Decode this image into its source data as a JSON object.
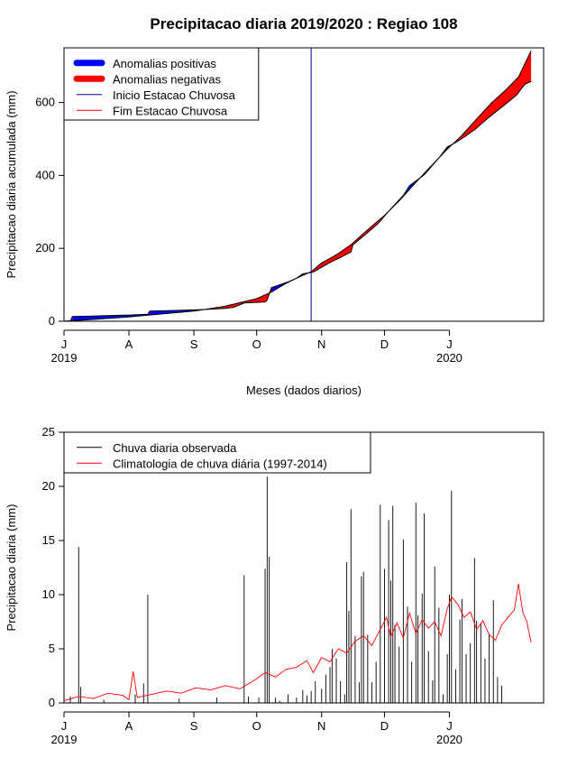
{
  "title": "Precipitacao diaria 2019/2020 : Regiao 108",
  "chart_data": [
    {
      "type": "area",
      "title": "Precipitacao diaria 2019/2020 : Regiao 108",
      "xlabel": "Meses (dados diarios)",
      "ylabel": "Precipitacao diaria acumulada (mm)",
      "x_range": [
        "2019-07-01",
        "2020-02-15"
      ],
      "ylim": [
        0,
        750
      ],
      "yticks": [
        "0",
        "200",
        "400",
        "600"
      ],
      "xticks": [
        {
          "date": "2019-07-01",
          "label": "J",
          "year": "2019"
        },
        {
          "date": "2019-08-01",
          "label": "A",
          "year": ""
        },
        {
          "date": "2019-09-01",
          "label": "S",
          "year": ""
        },
        {
          "date": "2019-10-01",
          "label": "O",
          "year": ""
        },
        {
          "date": "2019-11-01",
          "label": "N",
          "year": ""
        },
        {
          "date": "2019-12-01",
          "label": "D",
          "year": ""
        },
        {
          "date": "2020-01-01",
          "label": "J",
          "year": "2020"
        }
      ],
      "legend": {
        "position": "top-left",
        "entries": [
          {
            "label": "Anomalias positivas",
            "color": "#0000ff",
            "style": "thick"
          },
          {
            "label": "Anomalias negativas",
            "color": "#ff0000",
            "style": "thick"
          },
          {
            "label": "Inicio Estacao Chuvosa",
            "color": "#00008b",
            "style": "line"
          },
          {
            "label": "Fim Estacao Chuvosa",
            "color": "#ff0000",
            "style": "line"
          }
        ]
      },
      "rainy_season_start": "2019-10-27",
      "series": [
        {
          "name": "Observada",
          "points": [
            [
              "2019-07-01",
              0
            ],
            [
              "2019-07-04",
              1
            ],
            [
              "2019-07-05",
              13
            ],
            [
              "2019-07-15",
              14
            ],
            [
              "2019-07-25",
              16
            ],
            [
              "2019-08-01",
              17
            ],
            [
              "2019-08-05",
              18
            ],
            [
              "2019-08-10",
              19
            ],
            [
              "2019-08-11",
              28
            ],
            [
              "2019-08-20",
              29
            ],
            [
              "2019-08-31",
              31
            ],
            [
              "2019-09-05",
              32
            ],
            [
              "2019-09-15",
              35
            ],
            [
              "2019-09-20",
              38
            ],
            [
              "2019-09-25",
              50
            ],
            [
              "2019-10-05",
              53
            ],
            [
              "2019-10-06",
              58
            ],
            [
              "2019-10-08",
              92
            ],
            [
              "2019-10-12",
              100
            ],
            [
              "2019-10-16",
              108
            ],
            [
              "2019-10-20",
              118
            ],
            [
              "2019-10-23",
              130
            ],
            [
              "2019-10-28",
              135
            ],
            [
              "2019-11-01",
              148
            ],
            [
              "2019-11-06",
              164
            ],
            [
              "2019-11-10",
              175
            ],
            [
              "2019-11-15",
              190
            ],
            [
              "2019-11-16",
              210
            ],
            [
              "2019-11-22",
              238
            ],
            [
              "2019-11-28",
              268
            ],
            [
              "2019-12-04",
              308
            ],
            [
              "2019-12-10",
              345
            ],
            [
              "2019-12-13",
              372
            ],
            [
              "2019-12-20",
              402
            ],
            [
              "2019-12-27",
              448
            ],
            [
              "2019-12-31",
              478
            ],
            [
              "2020-01-04",
              490
            ],
            [
              "2020-01-08",
              505
            ],
            [
              "2020-01-13",
              525
            ],
            [
              "2020-01-20",
              560
            ],
            [
              "2020-01-27",
              592
            ],
            [
              "2020-02-02",
              620
            ],
            [
              "2020-02-06",
              650
            ],
            [
              "2020-02-09",
              658
            ]
          ]
        },
        {
          "name": "Climatologia",
          "points": [
            [
              "2019-07-01",
              0
            ],
            [
              "2019-07-15",
              5
            ],
            [
              "2019-08-01",
              12
            ],
            [
              "2019-08-15",
              19
            ],
            [
              "2019-09-01",
              28
            ],
            [
              "2019-09-15",
              40
            ],
            [
              "2019-10-01",
              62
            ],
            [
              "2019-10-08",
              80
            ],
            [
              "2019-10-15",
              104
            ],
            [
              "2019-10-20",
              118
            ],
            [
              "2019-10-27",
              136
            ],
            [
              "2019-11-01",
              160
            ],
            [
              "2019-11-08",
              182
            ],
            [
              "2019-11-15",
              210
            ],
            [
              "2019-11-22",
              246
            ],
            [
              "2019-12-01",
              290
            ],
            [
              "2019-12-08",
              330
            ],
            [
              "2019-12-15",
              375
            ],
            [
              "2019-12-22",
              418
            ],
            [
              "2019-12-31",
              472
            ],
            [
              "2020-01-07",
              510
            ],
            [
              "2020-01-14",
              555
            ],
            [
              "2020-01-21",
              598
            ],
            [
              "2020-01-28",
              635
            ],
            [
              "2020-02-03",
              670
            ],
            [
              "2020-02-09",
              742
            ]
          ]
        }
      ]
    },
    {
      "type": "bar",
      "xlabel": "Meses (dados diarios)",
      "ylabel": "Precipitacao diaria (mm)",
      "x_range": [
        "2019-07-01",
        "2020-02-15"
      ],
      "ylim": [
        0,
        25
      ],
      "yticks": [
        "0",
        "5",
        "10",
        "15",
        "20",
        "25"
      ],
      "xticks": [
        {
          "date": "2019-07-01",
          "label": "J",
          "year": "2019"
        },
        {
          "date": "2019-08-01",
          "label": "A",
          "year": ""
        },
        {
          "date": "2019-09-01",
          "label": "S",
          "year": ""
        },
        {
          "date": "2019-10-01",
          "label": "O",
          "year": ""
        },
        {
          "date": "2019-11-01",
          "label": "N",
          "year": ""
        },
        {
          "date": "2019-12-01",
          "label": "D",
          "year": ""
        },
        {
          "date": "2020-01-01",
          "label": "J",
          "year": "2020"
        }
      ],
      "legend": {
        "position": "top-left",
        "entries": [
          {
            "label": "Chuva diaria observada",
            "color": "#000000",
            "style": "line"
          },
          {
            "label": "Climatologia de chuva diária (1997-2014)",
            "color": "#ff0000",
            "style": "line"
          }
        ]
      },
      "series": [
        {
          "name": "Chuva diaria observada",
          "color": "#000000",
          "bars": [
            [
              "2019-07-04",
              0.6
            ],
            [
              "2019-07-08",
              14.4
            ],
            [
              "2019-07-09",
              1.5
            ],
            [
              "2019-07-20",
              0.3
            ],
            [
              "2019-08-04",
              0.8
            ],
            [
              "2019-08-08",
              1.8
            ],
            [
              "2019-08-10",
              10.0
            ],
            [
              "2019-08-25",
              0.4
            ],
            [
              "2019-09-12",
              0.5
            ],
            [
              "2019-09-25",
              11.8
            ],
            [
              "2019-09-27",
              0.6
            ],
            [
              "2019-10-02",
              0.5
            ],
            [
              "2019-10-05",
              12.4
            ],
            [
              "2019-10-06",
              20.9
            ],
            [
              "2019-10-07",
              13.5
            ],
            [
              "2019-10-10",
              0.5
            ],
            [
              "2019-10-12",
              0.2
            ],
            [
              "2019-10-16",
              0.8
            ],
            [
              "2019-10-20",
              0.5
            ],
            [
              "2019-10-23",
              1.2
            ],
            [
              "2019-10-25",
              0.7
            ],
            [
              "2019-10-27",
              1.1
            ],
            [
              "2019-10-29",
              2.0
            ],
            [
              "2019-11-01",
              1.3
            ],
            [
              "2019-11-03",
              2.6
            ],
            [
              "2019-11-05",
              3.3
            ],
            [
              "2019-11-06",
              5.0
            ],
            [
              "2019-11-08",
              4.1
            ],
            [
              "2019-11-10",
              2.0
            ],
            [
              "2019-11-12",
              0.8
            ],
            [
              "2019-11-13",
              13.0
            ],
            [
              "2019-11-14",
              8.5
            ],
            [
              "2019-11-15",
              17.9
            ],
            [
              "2019-11-17",
              6.2
            ],
            [
              "2019-11-19",
              1.9
            ],
            [
              "2019-11-20",
              11.7
            ],
            [
              "2019-11-21",
              12.1
            ],
            [
              "2019-11-23",
              6.3
            ],
            [
              "2019-11-25",
              1.9
            ],
            [
              "2019-11-27",
              3.8
            ],
            [
              "2019-11-29",
              18.3
            ],
            [
              "2019-12-01",
              12.4
            ],
            [
              "2019-12-03",
              16.9
            ],
            [
              "2019-12-04",
              11.3
            ],
            [
              "2019-12-05",
              18.2
            ],
            [
              "2019-12-06",
              7.2
            ],
            [
              "2019-12-08",
              5.2
            ],
            [
              "2019-12-10",
              15.1
            ],
            [
              "2019-12-12",
              8.9
            ],
            [
              "2019-12-14",
              3.8
            ],
            [
              "2019-12-16",
              18.5
            ],
            [
              "2019-12-17",
              8.1
            ],
            [
              "2019-12-19",
              10.1
            ],
            [
              "2019-12-20",
              17.5
            ],
            [
              "2019-12-22",
              4.8
            ],
            [
              "2019-12-24",
              2.1
            ],
            [
              "2019-12-25",
              12.6
            ],
            [
              "2019-12-27",
              8.8
            ],
            [
              "2019-12-29",
              0.8
            ],
            [
              "2019-12-31",
              4.5
            ],
            [
              "2020-01-01",
              10.0
            ],
            [
              "2020-01-02",
              19.6
            ],
            [
              "2020-01-04",
              3.1
            ],
            [
              "2020-01-06",
              7.7
            ],
            [
              "2020-01-07",
              9.6
            ],
            [
              "2020-01-09",
              4.5
            ],
            [
              "2020-01-11",
              5.5
            ],
            [
              "2020-01-13",
              13.4
            ],
            [
              "2020-01-14",
              7.6
            ],
            [
              "2020-01-16",
              7.3
            ],
            [
              "2020-01-18",
              4.1
            ],
            [
              "2020-01-20",
              6.4
            ],
            [
              "2020-01-22",
              9.5
            ],
            [
              "2020-01-24",
              2.4
            ],
            [
              "2020-01-26",
              1.6
            ]
          ]
        },
        {
          "name": "Climatologia de chuva diária (1997-2014)",
          "color": "#ff0000",
          "points": [
            [
              "2019-07-01",
              0.2
            ],
            [
              "2019-07-08",
              0.6
            ],
            [
              "2019-07-15",
              0.4
            ],
            [
              "2019-07-22",
              0.9
            ],
            [
              "2019-07-29",
              0.7
            ],
            [
              "2019-08-01",
              0.3
            ],
            [
              "2019-08-03",
              2.9
            ],
            [
              "2019-08-05",
              0.5
            ],
            [
              "2019-08-12",
              0.8
            ],
            [
              "2019-08-19",
              1.1
            ],
            [
              "2019-08-26",
              0.9
            ],
            [
              "2019-09-02",
              1.4
            ],
            [
              "2019-09-09",
              1.2
            ],
            [
              "2019-09-16",
              1.6
            ],
            [
              "2019-09-23",
              1.3
            ],
            [
              "2019-09-30",
              2.1
            ],
            [
              "2019-10-05",
              2.8
            ],
            [
              "2019-10-10",
              2.4
            ],
            [
              "2019-10-15",
              3.1
            ],
            [
              "2019-10-20",
              3.3
            ],
            [
              "2019-10-25",
              3.9
            ],
            [
              "2019-10-28",
              2.8
            ],
            [
              "2019-11-01",
              4.2
            ],
            [
              "2019-11-05",
              3.8
            ],
            [
              "2019-11-09",
              5.0
            ],
            [
              "2019-11-13",
              4.6
            ],
            [
              "2019-11-17",
              5.7
            ],
            [
              "2019-11-21",
              6.2
            ],
            [
              "2019-11-25",
              5.3
            ],
            [
              "2019-11-29",
              6.8
            ],
            [
              "2019-12-02",
              7.9
            ],
            [
              "2019-12-04",
              6.1
            ],
            [
              "2019-12-07",
              7.4
            ],
            [
              "2019-12-10",
              6.0
            ],
            [
              "2019-12-13",
              8.3
            ],
            [
              "2019-12-16",
              6.4
            ],
            [
              "2019-12-19",
              7.7
            ],
            [
              "2019-12-22",
              6.9
            ],
            [
              "2019-12-25",
              7.5
            ],
            [
              "2019-12-28",
              6.2
            ],
            [
              "2019-12-31",
              8.7
            ],
            [
              "2020-01-02",
              9.8
            ],
            [
              "2020-01-05",
              9.1
            ],
            [
              "2020-01-08",
              7.9
            ],
            [
              "2020-01-11",
              8.4
            ],
            [
              "2020-01-14",
              6.8
            ],
            [
              "2020-01-17",
              7.6
            ],
            [
              "2020-01-20",
              6.3
            ],
            [
              "2020-01-23",
              5.8
            ],
            [
              "2020-01-26",
              7.2
            ],
            [
              "2020-01-29",
              7.9
            ],
            [
              "2020-02-01",
              8.6
            ],
            [
              "2020-02-03",
              11.0
            ],
            [
              "2020-02-05",
              8.4
            ],
            [
              "2020-02-07",
              7.5
            ],
            [
              "2020-02-09",
              5.6
            ]
          ]
        }
      ]
    }
  ]
}
